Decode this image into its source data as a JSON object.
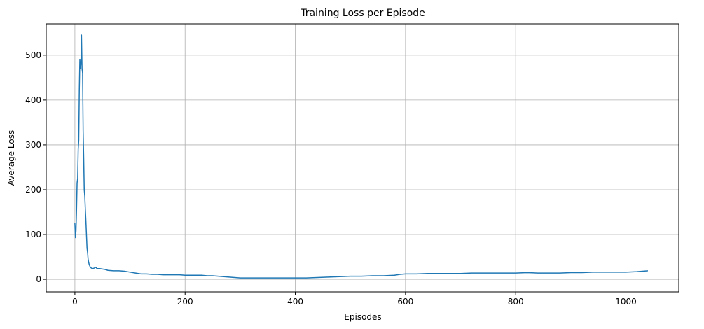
{
  "chart_data": {
    "type": "line",
    "title": "Training Loss per Episode",
    "xlabel": "Episodes",
    "ylabel": "Average Loss",
    "xlim": [
      -52,
      1096
    ],
    "ylim": [
      -28,
      570
    ],
    "xticks": [
      0,
      200,
      400,
      600,
      800,
      1000
    ],
    "yticks": [
      0,
      100,
      200,
      300,
      400,
      500
    ],
    "grid": true,
    "colors": {
      "line": "#1f77b4",
      "grid": "#b0b0b0",
      "axes": "#000000"
    },
    "series": [
      {
        "x": [
          0,
          1,
          2,
          3,
          4,
          5,
          6,
          7,
          8,
          9,
          10,
          11,
          12,
          13,
          14,
          15,
          16,
          17,
          18,
          19,
          20,
          21,
          22,
          23,
          24,
          25,
          26,
          27,
          28,
          30,
          32,
          35,
          38,
          40,
          45,
          50,
          55,
          60,
          70,
          80,
          90,
          100,
          110,
          120,
          130,
          140,
          150,
          160,
          170,
          180,
          190,
          200,
          210,
          220,
          230,
          240,
          250,
          260,
          270,
          280,
          290,
          300,
          310,
          320,
          330,
          340,
          350,
          360,
          370,
          380,
          390,
          400,
          420,
          440,
          460,
          480,
          500,
          520,
          540,
          560,
          580,
          590,
          600,
          620,
          640,
          660,
          680,
          700,
          720,
          740,
          760,
          780,
          800,
          820,
          840,
          860,
          880,
          900,
          920,
          940,
          960,
          980,
          1000,
          1020,
          1040
        ],
        "y": [
          125,
          93,
          108,
          155,
          215,
          225,
          290,
          310,
          420,
          490,
          470,
          480,
          545,
          470,
          460,
          330,
          270,
          200,
          185,
          155,
          130,
          100,
          70,
          60,
          45,
          38,
          33,
          30,
          27,
          25,
          24,
          25,
          27,
          24,
          24,
          23,
          22,
          20,
          19,
          19,
          18,
          16,
          14,
          12,
          12,
          11,
          11,
          10,
          10,
          10,
          10,
          9,
          9,
          9,
          9,
          8,
          8,
          7,
          6,
          5,
          4,
          3,
          3,
          3,
          3,
          3,
          3,
          3,
          3,
          3,
          3,
          3,
          3,
          4,
          5,
          6,
          7,
          7,
          8,
          8,
          9,
          11,
          12,
          12,
          13,
          13,
          13,
          13,
          14,
          14,
          14,
          14,
          14,
          15,
          14,
          14,
          14,
          15,
          15,
          16,
          16,
          16,
          16,
          17,
          19
        ]
      }
    ]
  }
}
